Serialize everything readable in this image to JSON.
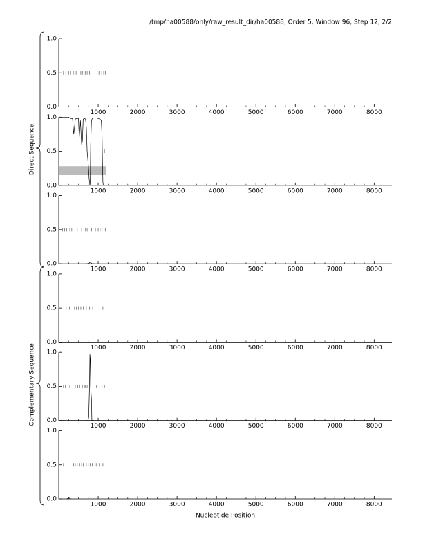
{
  "header": {
    "title": "/tmp/ha00588/only/raw_result_dir/ha00588, Order 5, Window 96, Step 12, 2/2"
  },
  "chart_data": [
    {
      "type": "line",
      "xlim": [
        0,
        8450
      ],
      "ylim": [
        0,
        1
      ],
      "xticks": [
        1000,
        2000,
        3000,
        4000,
        5000,
        6000,
        7000,
        8000
      ],
      "yticks": [
        {
          "value": 0,
          "label": "0.0"
        },
        {
          "value": 0.5,
          "label": "0.5"
        },
        {
          "value": 1,
          "label": "1.0"
        }
      ],
      "stops": [
        120,
        180,
        250,
        300,
        370,
        440,
        560,
        600,
        670,
        720,
        780,
        920,
        970,
        1020,
        1090,
        1140,
        1180
      ],
      "series": []
    },
    {
      "type": "line",
      "xlim": [
        0,
        8450
      ],
      "ylim": [
        0,
        1
      ],
      "ylabel": "Direct Sequence",
      "xticks": [
        1000,
        2000,
        3000,
        4000,
        5000,
        6000,
        7000,
        8000
      ],
      "yticks": [
        {
          "value": 0,
          "label": "0.0"
        },
        {
          "value": 0.5,
          "label": "0.5"
        },
        {
          "value": 1,
          "label": "1.0"
        }
      ],
      "stops": [
        1160
      ],
      "regions": [
        {
          "start": 0,
          "end": 1210,
          "low": 0.15,
          "high": 0.28,
          "color": "#bbbbbb"
        }
      ],
      "series": [
        {
          "color": "#000000",
          "x": [
            0,
            50,
            100,
            150,
            200,
            250,
            300,
            350,
            380,
            400,
            420,
            450,
            500,
            520,
            550,
            580,
            600,
            620,
            650,
            680,
            700,
            720,
            750,
            770,
            790,
            800,
            810,
            830,
            850,
            900,
            950,
            1000,
            1050,
            1080,
            1100,
            1110,
            1120,
            1130
          ],
          "values": [
            1,
            1,
            1,
            1,
            1,
            1,
            0.98,
            0.98,
            0.75,
            0.85,
            0.97,
            0.98,
            0.98,
            0.7,
            0.95,
            0.6,
            0.65,
            0.97,
            0.98,
            0.97,
            0.85,
            0.5,
            0.3,
            0.1,
            0.0,
            0.05,
            0.6,
            0.95,
            0.98,
            0.99,
            0.99,
            0.98,
            0.97,
            0.95,
            0.7,
            0.3,
            0.05,
            0.0
          ]
        }
      ]
    },
    {
      "type": "line",
      "xlim": [
        0,
        8450
      ],
      "ylim": [
        0,
        1
      ],
      "xticks": [
        1000,
        2000,
        3000,
        4000,
        5000,
        6000,
        7000,
        8000
      ],
      "yticks": [
        {
          "value": 0,
          "label": "0.0"
        },
        {
          "value": 0.5,
          "label": "0.5"
        },
        {
          "value": 1,
          "label": "1.0"
        }
      ],
      "stops": [
        100,
        150,
        200,
        280,
        330,
        470,
        580,
        640,
        680,
        720,
        830,
        930,
        1000,
        1050,
        1100,
        1150,
        1180
      ],
      "series": [
        {
          "color": "#000000",
          "x": [
            700,
            760,
            790,
            810,
            840,
            900
          ],
          "values": [
            0,
            0,
            0.02,
            0.02,
            0,
            0
          ]
        }
      ]
    },
    {
      "type": "line",
      "xlim": [
        0,
        8450
      ],
      "ylim": [
        0,
        1
      ],
      "xticks": [
        1000,
        2000,
        3000,
        4000,
        5000,
        6000,
        7000,
        8000
      ],
      "yticks": [
        {
          "value": 0,
          "label": "0.0"
        },
        {
          "value": 0.5,
          "label": "0.5"
        },
        {
          "value": 1,
          "label": "1.0"
        }
      ],
      "stops": [
        190,
        270,
        400,
        450,
        500,
        560,
        620,
        700,
        780,
        860,
        920,
        1040,
        1120
      ],
      "series": []
    },
    {
      "type": "line",
      "xlim": [
        0,
        8450
      ],
      "ylim": [
        0,
        1
      ],
      "ylabel": "Complementary Sequence",
      "xticks": [
        1000,
        2000,
        3000,
        4000,
        5000,
        6000,
        7000,
        8000
      ],
      "yticks": [
        {
          "value": 0,
          "label": "0.0"
        },
        {
          "value": 0.5,
          "label": "0.5"
        },
        {
          "value": 1,
          "label": "1.0"
        }
      ],
      "stops": [
        120,
        170,
        280,
        420,
        480,
        530,
        600,
        650,
        680,
        720,
        960,
        1040,
        1100,
        1160
      ],
      "series": [
        {
          "color": "#000000",
          "x": [
            700,
            740,
            760,
            780,
            790,
            800,
            810,
            820,
            830,
            840,
            900
          ],
          "values": [
            0,
            0,
            0.05,
            0.5,
            0.97,
            0.9,
            0.5,
            0.4,
            0.3,
            0,
            0
          ]
        }
      ]
    },
    {
      "type": "line",
      "xlim": [
        0,
        8450
      ],
      "ylim": [
        0,
        1
      ],
      "xlabel": "Nucleotide Position",
      "xticks": [
        1000,
        2000,
        3000,
        4000,
        5000,
        6000,
        7000,
        8000
      ],
      "yticks": [
        {
          "value": 0,
          "label": "0.0"
        },
        {
          "value": 0.5,
          "label": "0.5"
        },
        {
          "value": 1,
          "label": "1.0"
        }
      ],
      "stops": [
        120,
        380,
        420,
        470,
        530,
        580,
        620,
        700,
        750,
        800,
        850,
        950,
        1030,
        1120,
        1200
      ],
      "series": [
        {
          "color": "#000000",
          "x": [
            200,
            250,
            280,
            310
          ],
          "values": [
            0,
            0.01,
            0.01,
            0
          ]
        }
      ]
    }
  ]
}
